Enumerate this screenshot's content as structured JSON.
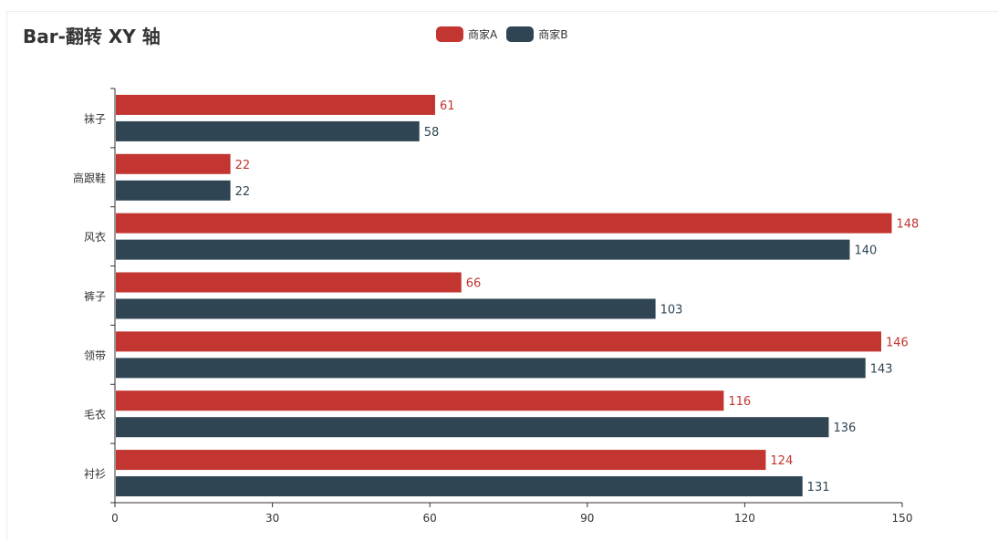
{
  "chart_data": {
    "type": "bar",
    "orientation": "horizontal",
    "title": "Bar-翻转 XY 轴",
    "categories": [
      "衬衫",
      "毛衣",
      "领带",
      "裤子",
      "风衣",
      "高跟鞋",
      "袜子"
    ],
    "series": [
      {
        "name": "商家A",
        "color": "#c23531",
        "values": [
          124,
          116,
          146,
          66,
          148,
          22,
          61
        ]
      },
      {
        "name": "商家B",
        "color": "#2f4554",
        "values": [
          131,
          136,
          143,
          103,
          140,
          22,
          58
        ]
      }
    ],
    "xlabel": "",
    "ylabel": "",
    "xlim": [
      0,
      150
    ],
    "x_ticks": [
      "0",
      "30",
      "60",
      "90",
      "120",
      "150"
    ],
    "grid": false,
    "legend_position": "top-center",
    "data_labels": true
  },
  "title": "Bar-翻转 XY 轴",
  "legend": [
    {
      "label": "商家A",
      "color": "#c23531"
    },
    {
      "label": "商家B",
      "color": "#2f4554"
    }
  ]
}
